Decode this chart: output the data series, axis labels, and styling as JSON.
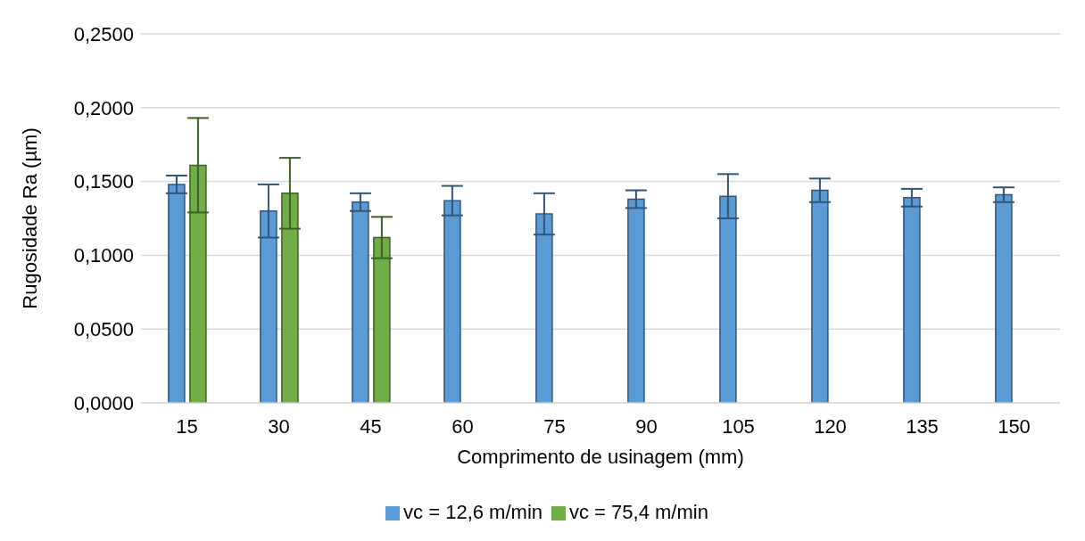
{
  "chart_data": {
    "type": "bar",
    "xlabel": "Comprimento de usinagem (mm)",
    "ylabel": "Rugosidade Ra (µm)",
    "categories": [
      "15",
      "30",
      "45",
      "60",
      "75",
      "90",
      "105",
      "120",
      "135",
      "150"
    ],
    "series": [
      {
        "name": "vc = 12,6 m/min",
        "color": "#5b9bd5",
        "values": [
          0.148,
          0.13,
          0.136,
          0.137,
          0.128,
          0.138,
          0.14,
          0.144,
          0.139,
          0.141
        ],
        "errors": [
          0.006,
          0.018,
          0.006,
          0.01,
          0.014,
          0.006,
          0.015,
          0.008,
          0.006,
          0.005
        ]
      },
      {
        "name": "vc = 75,4 m/min",
        "color": "#70ad47",
        "values": [
          0.161,
          0.142,
          0.112,
          null,
          null,
          null,
          null,
          null,
          null,
          null
        ],
        "errors": [
          0.032,
          0.024,
          0.014,
          null,
          null,
          null,
          null,
          null,
          null,
          null
        ]
      }
    ],
    "ylim": [
      0,
      0.25
    ],
    "yticks": [
      {
        "value": 0,
        "label": "0,0000"
      },
      {
        "value": 0.05,
        "label": "0,0500"
      },
      {
        "value": 0.1,
        "label": "0,1000"
      },
      {
        "value": 0.15,
        "label": "0,1500"
      },
      {
        "value": 0.2,
        "label": "0,2000"
      },
      {
        "value": 0.25,
        "label": "0,2500"
      }
    ],
    "grid": "y",
    "legend": "bottom"
  }
}
